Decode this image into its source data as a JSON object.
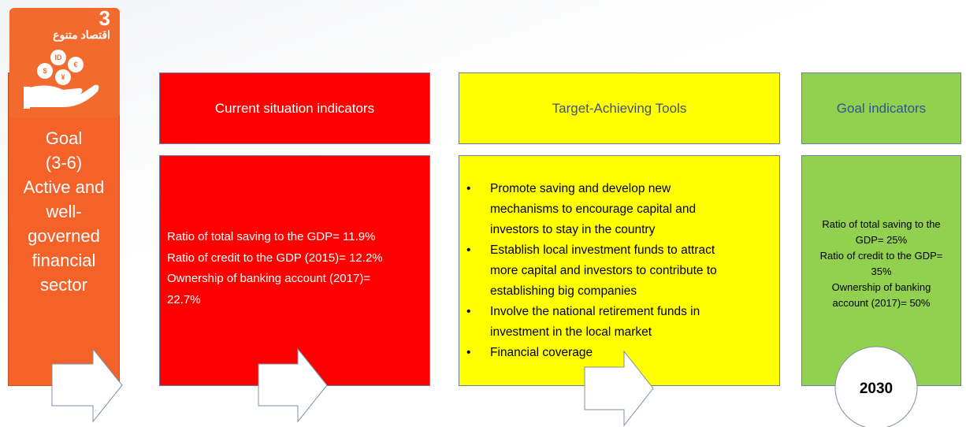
{
  "goal_tile": {
    "number": "3",
    "arabic": "اقتصاد متنوع",
    "coins": [
      "ID",
      "€",
      "$",
      "¥"
    ]
  },
  "goal": {
    "lines": [
      "Goal",
      "(3-6)",
      "Active and",
      "well-",
      "governed",
      "financial",
      "sector"
    ]
  },
  "current": {
    "header": "Current situation indicators",
    "lines": [
      "Ratio of total saving to the GDP= 11.9%",
      "Ratio of credit to the GDP (2015)= 12.2%",
      "Ownership of banking account (2017)=",
      "22.7%"
    ]
  },
  "tools": {
    "header": "Target-Achieving Tools",
    "items": [
      {
        "lines": [
          "Promote saving and develop new",
          "mechanisms to encourage capital and",
          "investors to stay in the country"
        ]
      },
      {
        "lines": [
          "Establish local investment funds to attract",
          "more capital and investors to contribute to",
          "establishing big companies"
        ]
      },
      {
        "lines": [
          "Involve the national retirement funds in",
          "investment in the local market"
        ]
      },
      {
        "lines": [
          "Financial coverage"
        ]
      }
    ]
  },
  "goal_indicators": {
    "header": "Goal indicators",
    "lines": [
      "Ratio of total saving to the",
      "GDP= 25%",
      "Ratio of credit to the GDP=",
      "35%",
      "Ownership of banking",
      "account (2017)= 50%"
    ],
    "year": "2030"
  }
}
